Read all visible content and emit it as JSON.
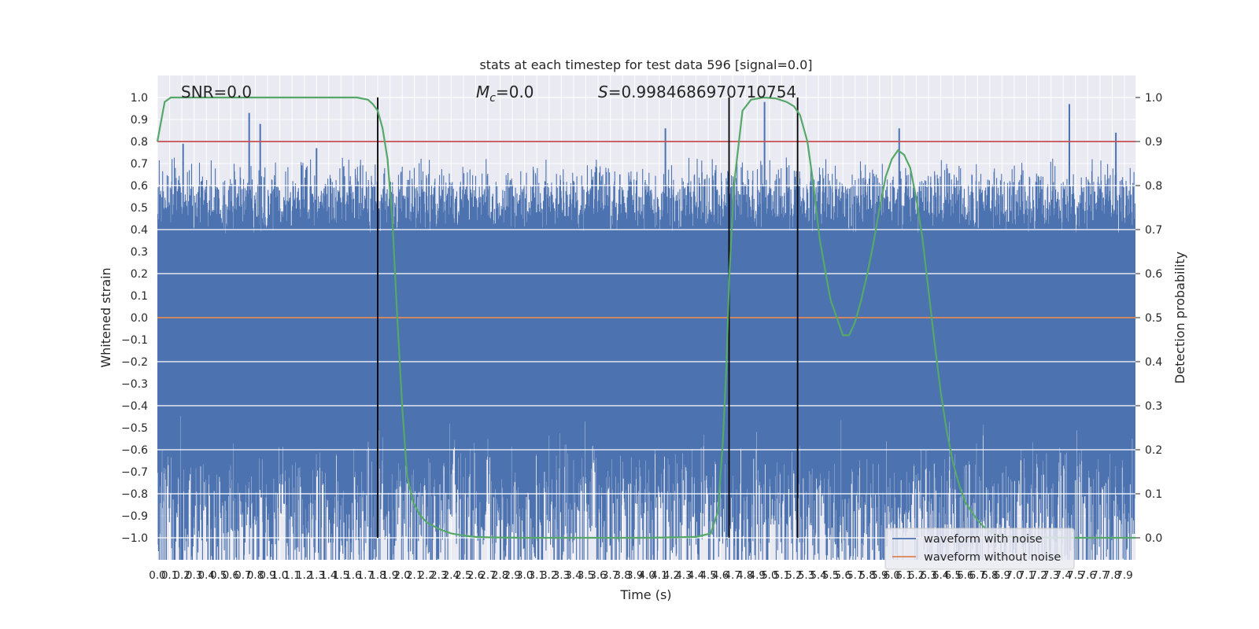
{
  "chart_data": {
    "type": "line",
    "title": "stats at each timestep for test data 596 [signal=0.0]",
    "xlabel": "Time (s)",
    "ylabel": "Whitened strain",
    "ylabel_right": "Detection probability",
    "xlim": [
      0.0,
      7.99
    ],
    "ylim": [
      -1.1,
      1.1
    ],
    "ylim_right": [
      -0.05,
      1.05
    ],
    "yticks": [
      -1.0,
      -0.9,
      -0.8,
      -0.7,
      -0.6,
      -0.5,
      -0.4,
      -0.3,
      -0.2,
      -0.1,
      0.0,
      0.1,
      0.2,
      0.3,
      0.4,
      0.5,
      0.6,
      0.7,
      0.8,
      0.9,
      1.0
    ],
    "ytick_labels": [
      "−1.0",
      "−0.9",
      "−0.8",
      "−0.7",
      "−0.6",
      "−0.5",
      "−0.4",
      "−0.3",
      "−0.2",
      "−0.1",
      "0.0",
      "0.1",
      "0.2",
      "0.3",
      "0.4",
      "0.5",
      "0.6",
      "0.7",
      "0.8",
      "0.9",
      "1.0"
    ],
    "yticks_right": [
      0.0,
      0.1,
      0.2,
      0.3,
      0.4,
      0.5,
      0.6,
      0.7,
      0.8,
      0.9,
      1.0
    ],
    "ytick_right_labels": [
      "0.0",
      "0.1",
      "0.2",
      "0.3",
      "0.4",
      "0.5",
      "0.6",
      "0.7",
      "0.8",
      "0.9",
      "1.0"
    ],
    "xticks_step": 0.1,
    "xtick_labels": [
      "0.0",
      "0.1",
      "0.2",
      "0.3",
      "0.4",
      "0.5",
      "0.6",
      "0.7",
      "0.8",
      "0.9",
      "1.0",
      "1.1",
      "1.2",
      "1.3",
      "1.4",
      "1.5",
      "1.6",
      "1.7",
      "1.8",
      "1.9",
      "2.0",
      "2.1",
      "2.2",
      "2.3",
      "2.4",
      "2.5",
      "2.6",
      "2.7",
      "2.8",
      "2.9",
      "3.0",
      "3.1",
      "3.2",
      "3.3",
      "3.4",
      "3.5",
      "3.6",
      "3.7",
      "3.8",
      "3.9",
      "4.0",
      "4.1",
      "4.2",
      "4.3",
      "4.4",
      "4.5",
      "4.6",
      "4.7",
      "4.8",
      "4.9",
      "5.0",
      "5.1",
      "5.2",
      "5.3",
      "5.4",
      "5.5",
      "5.6",
      "5.7",
      "5.8",
      "5.9",
      "6.0",
      "6.1",
      "6.2",
      "6.3",
      "6.4",
      "6.5",
      "6.6",
      "6.7",
      "6.8",
      "6.9",
      "7.0",
      "7.1",
      "7.2",
      "7.3",
      "7.4",
      "7.5",
      "7.6",
      "7.7",
      "7.8",
      "7.9"
    ],
    "grid": true,
    "annotations": {
      "snr": "SNR=0.0",
      "mc_symbol": "M",
      "mc_subscript": "c",
      "mc_value": "=0.0",
      "s_symbol": "S",
      "s_value": "=0.9984686970710754"
    },
    "threshold": {
      "value": 0.9,
      "axis": "right",
      "color": "#c44e52"
    },
    "vertical_lines": [
      1.8,
      4.67,
      5.23
    ],
    "legend": {
      "position": "lower-right",
      "entries": [
        {
          "label": "waveform with noise",
          "color": "#4c72b0"
        },
        {
          "label": "waveform without noise",
          "color": "#dd8452"
        }
      ]
    },
    "series": [
      {
        "name": "waveform with noise",
        "axis": "left",
        "color": "#4c72b0",
        "style": "dense-noise",
        "core_band": [
          -0.38,
          0.38
        ],
        "typical_range": [
          -0.68,
          0.68
        ],
        "notable_peaks": [
          {
            "x": 0.21,
            "y": 0.79
          },
          {
            "x": 0.75,
            "y": 0.93
          },
          {
            "x": 0.84,
            "y": 0.88
          },
          {
            "x": 1.3,
            "y": 0.77
          },
          {
            "x": 4.15,
            "y": 0.86
          },
          {
            "x": 4.96,
            "y": 0.98
          },
          {
            "x": 6.06,
            "y": 0.86
          },
          {
            "x": 7.45,
            "y": 0.97
          },
          {
            "x": 7.83,
            "y": 0.84
          },
          {
            "x": 0.24,
            "y": -0.93
          },
          {
            "x": 1.21,
            "y": -0.87
          },
          {
            "x": 1.42,
            "y": -0.84
          },
          {
            "x": 3.27,
            "y": -0.93
          },
          {
            "x": 3.7,
            "y": -0.9
          },
          {
            "x": 5.17,
            "y": -0.9
          },
          {
            "x": 6.37,
            "y": -1.0
          },
          {
            "x": 6.67,
            "y": -0.82
          },
          {
            "x": 6.81,
            "y": -0.88
          },
          {
            "x": 7.33,
            "y": -0.87
          },
          {
            "x": 7.85,
            "y": -0.84
          }
        ]
      },
      {
        "name": "waveform without noise",
        "axis": "left",
        "color": "#dd8452",
        "x": [
          0.0,
          7.99
        ],
        "y": [
          0.0,
          0.0
        ]
      },
      {
        "name": "Detection probability",
        "axis": "right",
        "color": "#55a868",
        "x": [
          0.0,
          0.06,
          0.11,
          0.2,
          0.5,
          1.0,
          1.5,
          1.63,
          1.72,
          1.76,
          1.8,
          1.84,
          1.88,
          1.92,
          1.96,
          2.0,
          2.04,
          2.09,
          2.15,
          2.2,
          2.3,
          2.4,
          2.5,
          2.6,
          2.7,
          3.0,
          3.5,
          4.0,
          4.4,
          4.52,
          4.58,
          4.62,
          4.65,
          4.67,
          4.71,
          4.78,
          4.85,
          4.95,
          5.05,
          5.14,
          5.2,
          5.25,
          5.31,
          5.36,
          5.41,
          5.46,
          5.5,
          5.55,
          5.6,
          5.65,
          5.7,
          5.75,
          5.8,
          5.85,
          5.9,
          5.95,
          6.0,
          6.05,
          6.1,
          6.15,
          6.2,
          6.25,
          6.3,
          6.35,
          6.4,
          6.45,
          6.5,
          6.55,
          6.6,
          6.65,
          6.7,
          6.75,
          6.8,
          6.85,
          6.9,
          7.0,
          7.5,
          7.99
        ],
        "y": [
          0.9,
          0.99,
          1.0,
          1.0,
          1.0,
          1.0,
          1.0,
          1.0,
          0.995,
          0.985,
          0.97,
          0.93,
          0.86,
          0.72,
          0.5,
          0.3,
          0.14,
          0.08,
          0.05,
          0.035,
          0.02,
          0.01,
          0.005,
          0.002,
          0.001,
          0.0,
          0.0,
          0.0,
          0.002,
          0.01,
          0.06,
          0.22,
          0.4,
          0.58,
          0.8,
          0.97,
          0.995,
          1.0,
          0.998,
          0.99,
          0.98,
          0.96,
          0.9,
          0.8,
          0.68,
          0.6,
          0.54,
          0.5,
          0.46,
          0.46,
          0.49,
          0.54,
          0.6,
          0.67,
          0.75,
          0.82,
          0.86,
          0.88,
          0.87,
          0.84,
          0.77,
          0.68,
          0.56,
          0.44,
          0.33,
          0.24,
          0.17,
          0.12,
          0.08,
          0.06,
          0.04,
          0.025,
          0.015,
          0.008,
          0.004,
          0.001,
          0.0,
          0.0
        ]
      }
    ]
  }
}
